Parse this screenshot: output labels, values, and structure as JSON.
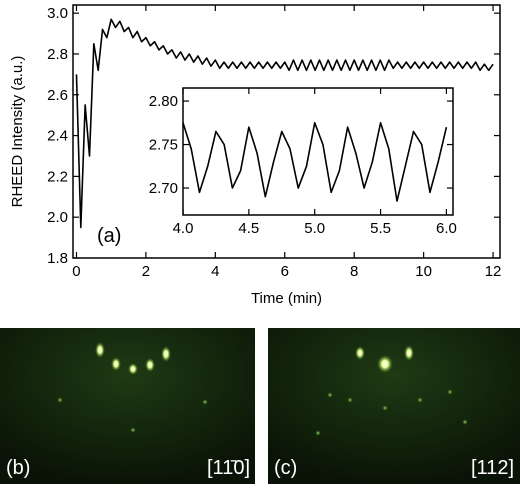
{
  "chart_data": [
    {
      "type": "line",
      "x_label": "Time (min)",
      "y_label": "RHEED Intensity (a.u.)",
      "annotation": "(a)",
      "xlim": [
        -0.1,
        12.2
      ],
      "ylim": [
        1.8,
        3.04
      ],
      "xticks": [
        0,
        2,
        4,
        6,
        8,
        10,
        12
      ],
      "yticks": [
        {
          "value": 1.8,
          "label": "1.8"
        },
        {
          "value": 2,
          "label": "2.0"
        },
        2.2,
        2.4,
        2.6,
        2.8,
        {
          "value": 3,
          "label": "3.0"
        }
      ],
      "x": [
        0,
        0.125,
        0.25,
        0.375,
        0.5,
        0.625,
        0.75,
        0.875,
        1,
        1.125,
        1.25,
        1.375,
        1.5,
        1.625,
        1.75,
        1.875,
        2,
        2.125,
        2.25,
        2.375,
        2.5,
        2.625,
        2.75,
        2.875,
        3,
        3.125,
        3.25,
        3.375,
        3.5,
        3.625,
        3.75,
        3.875,
        4,
        4.125,
        4.25,
        4.375,
        4.5,
        4.625,
        4.75,
        4.875,
        5,
        5.125,
        5.25,
        5.375,
        5.5,
        5.625,
        5.75,
        5.875,
        6,
        6.125,
        6.25,
        6.375,
        6.5,
        6.625,
        6.75,
        6.875,
        7,
        7.125,
        7.25,
        7.375,
        7.5,
        7.625,
        7.75,
        7.875,
        8,
        8.125,
        8.25,
        8.375,
        8.5,
        8.625,
        8.75,
        8.875,
        9,
        9.125,
        9.25,
        9.375,
        9.5,
        9.625,
        9.75,
        9.875,
        10,
        10.125,
        10.25,
        10.375,
        10.5,
        10.625,
        10.75,
        10.875,
        11,
        11.125,
        11.25,
        11.375,
        11.5,
        11.625,
        11.75,
        11.875,
        12
      ],
      "series": [
        {
          "color": "#000000",
          "values": [
            2.7,
            1.95,
            2.55,
            2.3,
            2.85,
            2.72,
            2.92,
            2.88,
            2.97,
            2.93,
            2.96,
            2.91,
            2.93,
            2.88,
            2.91,
            2.86,
            2.88,
            2.84,
            2.86,
            2.82,
            2.84,
            2.8,
            2.82,
            2.78,
            2.81,
            2.77,
            2.8,
            2.76,
            2.79,
            2.75,
            2.78,
            2.74,
            2.77,
            2.73,
            2.76,
            2.73,
            2.76,
            2.73,
            2.76,
            2.73,
            2.76,
            2.73,
            2.76,
            2.73,
            2.76,
            2.73,
            2.76,
            2.73,
            2.76,
            2.72,
            2.77,
            2.72,
            2.77,
            2.72,
            2.77,
            2.72,
            2.77,
            2.72,
            2.77,
            2.72,
            2.77,
            2.72,
            2.77,
            2.72,
            2.77,
            2.72,
            2.77,
            2.72,
            2.77,
            2.72,
            2.77,
            2.72,
            2.77,
            2.73,
            2.76,
            2.73,
            2.76,
            2.73,
            2.76,
            2.73,
            2.76,
            2.73,
            2.76,
            2.73,
            2.76,
            2.73,
            2.76,
            2.73,
            2.76,
            2.73,
            2.76,
            2.73,
            2.76,
            2.72,
            2.75,
            2.72,
            2.75
          ]
        }
      ]
    },
    {
      "type": "line",
      "xlim": [
        4,
        6.05
      ],
      "ylim": [
        2.669,
        2.815
      ],
      "xticks": [
        {
          "value": 4,
          "label": "4.0"
        },
        4.5,
        {
          "value": 5,
          "label": "5.0"
        },
        5.5,
        {
          "value": 6,
          "label": "6.0"
        }
      ],
      "yticks": [
        {
          "value": 2.7,
          "label": "2.70"
        },
        2.75,
        {
          "value": 2.8,
          "label": "2.80"
        }
      ],
      "x": [
        4,
        4.0625,
        4.125,
        4.1875,
        4.25,
        4.3125,
        4.375,
        4.4375,
        4.5,
        4.5625,
        4.625,
        4.6875,
        4.75,
        4.8125,
        4.875,
        4.9375,
        5,
        5.0625,
        5.125,
        5.1875,
        5.25,
        5.3125,
        5.375,
        5.4375,
        5.5,
        5.5625,
        5.625,
        5.6875,
        5.75,
        5.8125,
        5.875,
        5.9375,
        6
      ],
      "series": [
        {
          "color": "#000000",
          "values": [
            2.775,
            2.745,
            2.695,
            2.725,
            2.765,
            2.75,
            2.7,
            2.72,
            2.77,
            2.74,
            2.69,
            2.73,
            2.765,
            2.745,
            2.7,
            2.725,
            2.775,
            2.75,
            2.695,
            2.72,
            2.77,
            2.74,
            2.7,
            2.73,
            2.775,
            2.745,
            2.685,
            2.725,
            2.765,
            2.75,
            2.695,
            2.73,
            2.77
          ]
        }
      ]
    }
  ],
  "images": [
    {
      "label": "(b)",
      "direction": "[11̄0]"
    },
    {
      "label": "(c)",
      "direction": "[112]"
    }
  ]
}
